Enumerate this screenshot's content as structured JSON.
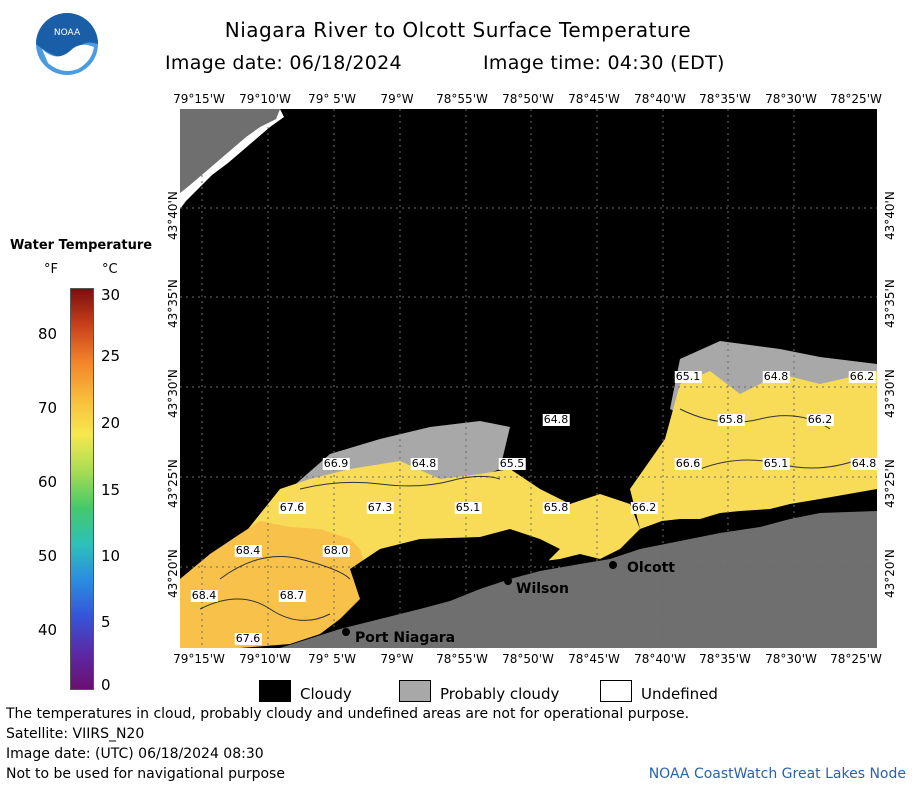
{
  "header": {
    "title": "Niagara River to Olcott Surface Temperature",
    "image_date": "Image date: 06/18/2024",
    "image_time": "Image time: 04:30 (EDT)"
  },
  "logo": {
    "text": "NOAA",
    "color_top": "#1a5ea8",
    "color_bottom": "#4b9be0"
  },
  "axes": {
    "longitudes": [
      "79°15'W",
      "79°10'W",
      "79° 5'W",
      "79°W",
      "78°55'W",
      "78°50'W",
      "78°45'W",
      "78°40'W",
      "78°35'W",
      "78°30'W",
      "78°25'W"
    ],
    "latitudes": [
      "43°40'N",
      "43°35'N",
      "43°30'N",
      "43°25'N",
      "43°20'N"
    ]
  },
  "legend": {
    "title": "Water Temperature",
    "unit_f": "°F",
    "unit_c": "°C",
    "fahrenheit_ticks": [
      "80",
      "70",
      "60",
      "50",
      "40"
    ],
    "celsius_ticks": [
      "30",
      "25",
      "20",
      "15",
      "10",
      "5",
      "0"
    ],
    "gradient_colors": [
      "#7b0f0f",
      "#c8401a",
      "#f3832a",
      "#f8bb3a",
      "#f6e84e",
      "#a9dd52",
      "#45c969",
      "#2dc1b8",
      "#2a8ee0",
      "#3555d8",
      "#5a2aa6",
      "#6b1070"
    ]
  },
  "map": {
    "colors": {
      "cloud": "#000000",
      "probably_cloudy": "#a8a8a8",
      "land": "#6f6f6f",
      "undefined": "#ffffff",
      "warm": "#f7c14a",
      "mid": "#f8dc58",
      "cool": "#fbe86a"
    },
    "isotherm_labels": [
      "65.1",
      "64.8",
      "66.2",
      "64.8",
      "65.8",
      "66.2",
      "66.9",
      "64.8",
      "65.5",
      "66.6",
      "65.1",
      "64.8",
      "67.6",
      "67.3",
      "65.1",
      "65.8",
      "66.2",
      "68.4",
      "68.0",
      "68.4",
      "68.7",
      "67.6"
    ],
    "cities": [
      "Olcott",
      "Wilson",
      "Port Niagara"
    ]
  },
  "key": {
    "cloudy": "Cloudy",
    "probably_cloudy": "Probably cloudy",
    "undefined": "Undefined"
  },
  "footer": {
    "disclaimer": "The temperatures in cloud, probably cloudy and undefined areas are not for operational purpose.",
    "satellite": "Satellite: VIIRS_N20",
    "utc_date": "Image date: (UTC) 06/18/2024  08:30",
    "nav_warning": "Not to be used for navigational purpose",
    "credit": "NOAA CoastWatch Great Lakes Node"
  }
}
